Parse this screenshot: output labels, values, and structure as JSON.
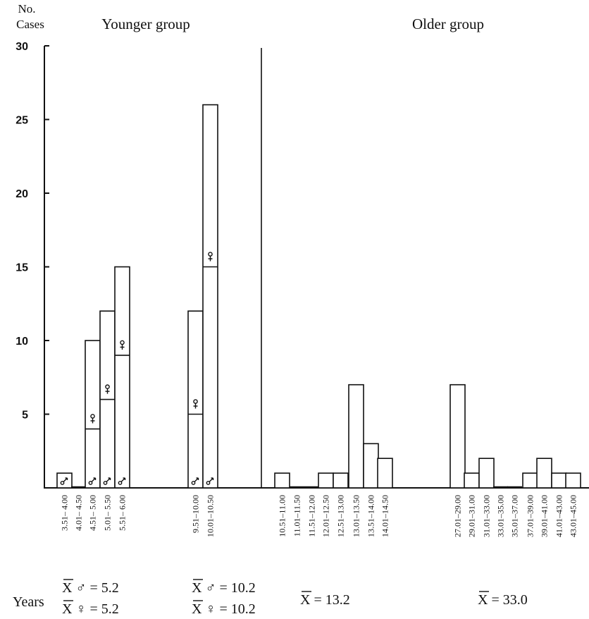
{
  "chart_data": {
    "type": "bar",
    "ylabel_line1": "No.",
    "ylabel_line2": "Cases",
    "group_labels": [
      "Younger group",
      "Older group"
    ],
    "ylim": [
      0,
      30
    ],
    "yticks": [
      "30",
      "25",
      "20",
      "15",
      "10",
      "5"
    ],
    "bins": [
      {
        "label": "3.51– 4.00",
        "total": 1,
        "male": 1
      },
      {
        "label": "4.01– 4.50",
        "total": 0,
        "male": 0
      },
      {
        "label": "4.51– 5.00",
        "total": 10,
        "male": 4
      },
      {
        "label": "5.01– 5.50",
        "total": 12,
        "male": 6
      },
      {
        "label": "5.51– 6.00",
        "total": 15,
        "male": 9
      },
      {
        "label": "9.51–10.00",
        "total": 12,
        "male": 5
      },
      {
        "label": "10.01–10.50",
        "total": 26,
        "male": 15
      },
      {
        "label": "10.51–11.00",
        "total": 1
      },
      {
        "label": "11.01–11.50",
        "total": 0
      },
      {
        "label": "11.51–12.00",
        "total": 0
      },
      {
        "label": "12.01–12.50",
        "total": 1
      },
      {
        "label": "12.51–13.00",
        "total": 1
      },
      {
        "label": "13.01–13.50",
        "total": 7
      },
      {
        "label": "13.51–14.00",
        "total": 3
      },
      {
        "label": "14.01–14.50",
        "total": 2
      },
      {
        "label": "27.01–29.00",
        "total": 7
      },
      {
        "label": "29.01–31.00",
        "total": 1
      },
      {
        "label": "31.01–33.00",
        "total": 2
      },
      {
        "label": "33.01–35.00",
        "total": 0
      },
      {
        "label": "35.01–37.00",
        "total": 0
      },
      {
        "label": "37.01–39.00",
        "total": 1
      },
      {
        "label": "39.01–41.00",
        "total": 2
      },
      {
        "label": "41.01–43.00",
        "total": 1
      },
      {
        "label": "43.01–45.00",
        "total": 1
      }
    ],
    "years_label": "Years",
    "means": [
      {
        "male": "X ♂ = 5.2",
        "female": "X ♀ = 5.2"
      },
      {
        "male": "X ♂ = 10.2",
        "female": "X ♀ = 10.2"
      },
      {
        "single": "X = 13.2"
      },
      {
        "single": "X = 33.0"
      }
    ]
  }
}
